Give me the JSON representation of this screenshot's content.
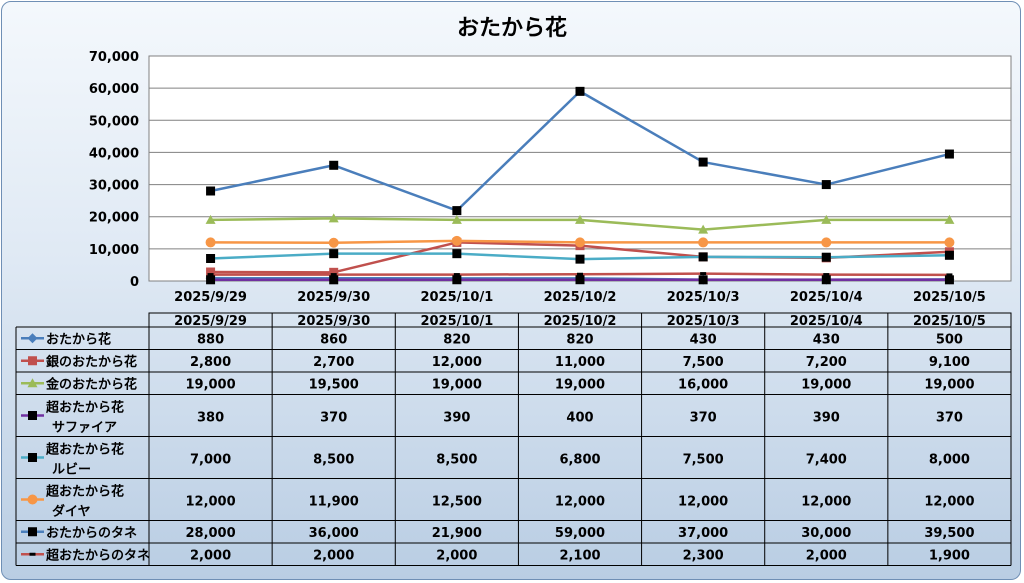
{
  "chart_data": {
    "type": "line",
    "title": "おたから花",
    "categories": [
      "2025/9/29",
      "2025/9/30",
      "2025/10/1",
      "2025/10/2",
      "2025/10/3",
      "2025/10/4",
      "2025/10/5"
    ],
    "ylim": [
      0,
      70000
    ],
    "yticks": [
      "0",
      "10,000",
      "20,000",
      "30,000",
      "40,000",
      "50,000",
      "60,000",
      "70,000"
    ],
    "grid": true,
    "legend": "data-table",
    "series": [
      {
        "name": "おたから花",
        "name_lines": [
          "おたから花"
        ],
        "color": "#4a7ebb",
        "marker": "diamond",
        "values": [
          880,
          860,
          820,
          820,
          430,
          430,
          500
        ],
        "labels": [
          "880",
          "860",
          "820",
          "820",
          "430",
          "430",
          "500"
        ]
      },
      {
        "name": "銀のおたから花",
        "name_lines": [
          "銀のおたから花"
        ],
        "color": "#c0504d",
        "marker": "square",
        "values": [
          2800,
          2700,
          12000,
          11000,
          7500,
          7200,
          9100
        ],
        "labels": [
          "2,800",
          "2,700",
          "12,000",
          "11,000",
          "7,500",
          "7,200",
          "9,100"
        ]
      },
      {
        "name": "金のおたから花",
        "name_lines": [
          "金のおたから花"
        ],
        "color": "#9bbb59",
        "marker": "triangle",
        "values": [
          19000,
          19500,
          19000,
          19000,
          16000,
          19000,
          19000
        ],
        "labels": [
          "19,000",
          "19,500",
          "19,000",
          "19,000",
          "16,000",
          "19,000",
          "19,000"
        ]
      },
      {
        "name": "超おたから花 サファイア",
        "name_lines": [
          "超おたから花",
          "サファイア"
        ],
        "color": "#7030a0",
        "marker": "square-black",
        "values": [
          380,
          370,
          390,
          400,
          370,
          390,
          370
        ],
        "labels": [
          "380",
          "370",
          "390",
          "400",
          "370",
          "390",
          "370"
        ]
      },
      {
        "name": "超おたから花 ルビー",
        "name_lines": [
          "超おたから花",
          "ルビー"
        ],
        "color": "#4bacc6",
        "marker": "square-black",
        "values": [
          7000,
          8500,
          8500,
          6800,
          7500,
          7400,
          8000
        ],
        "labels": [
          "7,000",
          "8,500",
          "8,500",
          "6,800",
          "7,500",
          "7,400",
          "8,000"
        ]
      },
      {
        "name": "超おたから花 ダイヤ",
        "name_lines": [
          "超おたから花",
          "ダイヤ"
        ],
        "color": "#f79646",
        "marker": "circle",
        "values": [
          12000,
          11900,
          12500,
          12000,
          12000,
          12000,
          12000
        ],
        "labels": [
          "12,000",
          "11,900",
          "12,500",
          "12,000",
          "12,000",
          "12,000",
          "12,000"
        ]
      },
      {
        "name": "おたからのタネ",
        "name_lines": [
          "おたからのタネ"
        ],
        "color": "#4a7ebb",
        "marker": "square-black",
        "values": [
          28000,
          36000,
          21900,
          59000,
          37000,
          30000,
          39500
        ],
        "labels": [
          "28,000",
          "36,000",
          "21,900",
          "59,000",
          "37,000",
          "30,000",
          "39,500"
        ]
      },
      {
        "name": "超おたからのタネ",
        "name_lines": [
          "超おたからのタネ"
        ],
        "color": "#c0504d",
        "marker": "dash-black",
        "values": [
          2000,
          2000,
          2000,
          2100,
          2300,
          2000,
          1900
        ],
        "labels": [
          "2,000",
          "2,000",
          "2,000",
          "2,100",
          "2,300",
          "2,000",
          "1,900"
        ]
      }
    ]
  }
}
